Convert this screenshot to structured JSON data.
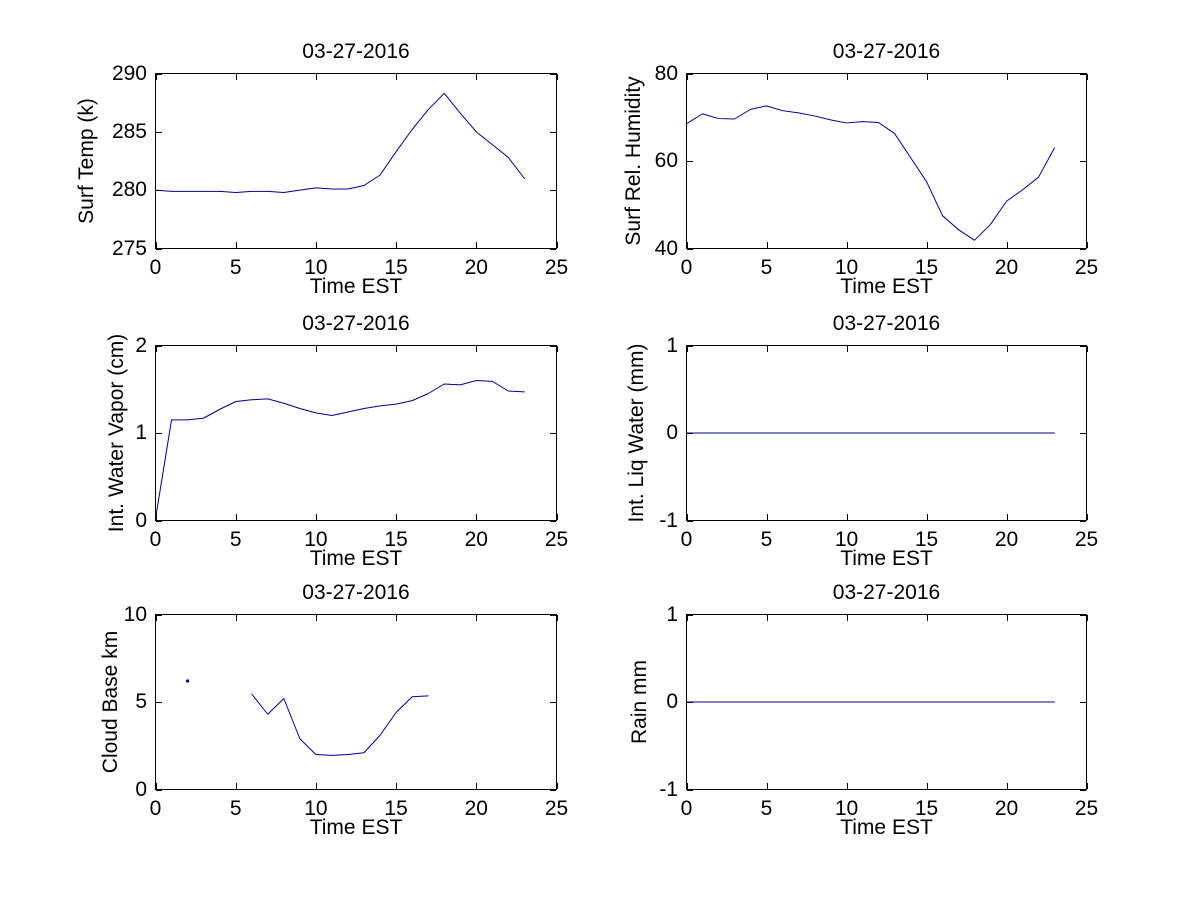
{
  "window": {
    "background": "#ffffff"
  },
  "figure": {
    "date": "03-27-2016",
    "line_color": "#00008B",
    "axis_color": "#000000",
    "text_color": "#000000",
    "grid": false,
    "legend": "none"
  },
  "chart_data": [
    {
      "type": "line",
      "title": "03-27-2016",
      "xlabel": "Time EST",
      "ylabel": "Surf Temp (k)",
      "xlim": [
        0,
        25
      ],
      "ylim": [
        275,
        290
      ],
      "xticks": [
        0,
        5,
        10,
        15,
        20,
        25
      ],
      "yticks": [
        275,
        280,
        285,
        290
      ],
      "series": [
        {
          "name": "surf-temp-k",
          "x": [
            0,
            1,
            2,
            3,
            4,
            5,
            6,
            7,
            8,
            9,
            10,
            11,
            12,
            13,
            14,
            15,
            16,
            17,
            18,
            19,
            20,
            21,
            22,
            23
          ],
          "y": [
            280.0,
            279.9,
            279.9,
            279.9,
            279.9,
            279.8,
            279.9,
            279.9,
            279.8,
            280.0,
            280.2,
            280.1,
            280.1,
            280.4,
            281.3,
            283.3,
            285.2,
            286.9,
            288.3,
            286.6,
            285.0,
            283.9,
            282.8,
            281.0
          ]
        }
      ]
    },
    {
      "type": "line",
      "title": "03-27-2016",
      "xlabel": "Time EST",
      "ylabel": "Surf Rel. Humidity",
      "xlim": [
        0,
        25
      ],
      "ylim": [
        40,
        80
      ],
      "xticks": [
        0,
        5,
        10,
        15,
        20,
        25
      ],
      "yticks": [
        40,
        60,
        80
      ],
      "series": [
        {
          "name": "surf-rel-humidity",
          "x": [
            0,
            1,
            2,
            3,
            4,
            5,
            6,
            7,
            8,
            9,
            10,
            11,
            12,
            13,
            14,
            15,
            16,
            17,
            18,
            19,
            20,
            21,
            22,
            23
          ],
          "y": [
            68.5,
            70.8,
            69.7,
            69.6,
            71.8,
            72.6,
            71.5,
            71.0,
            70.3,
            69.4,
            68.7,
            69.0,
            68.8,
            66.3,
            60.8,
            55.3,
            47.5,
            44.3,
            41.9,
            45.5,
            50.8,
            53.4,
            56.3,
            63.0
          ]
        }
      ]
    },
    {
      "type": "line",
      "title": "03-27-2016",
      "xlabel": "Time EST",
      "ylabel": "Int. Water Vapor (cm)",
      "xlim": [
        0,
        25
      ],
      "ylim": [
        0,
        2
      ],
      "xticks": [
        0,
        5,
        10,
        15,
        20,
        25
      ],
      "yticks": [
        0,
        1,
        2
      ],
      "series": [
        {
          "name": "int-water-vapor",
          "x": [
            0,
            1,
            2,
            3,
            4,
            5,
            6,
            7,
            8,
            9,
            10,
            11,
            12,
            13,
            14,
            15,
            16,
            17,
            18,
            19,
            20,
            21,
            22,
            23
          ],
          "y": [
            0.02,
            1.15,
            1.15,
            1.17,
            1.27,
            1.36,
            1.38,
            1.39,
            1.34,
            1.28,
            1.23,
            1.2,
            1.24,
            1.28,
            1.31,
            1.33,
            1.37,
            1.45,
            1.56,
            1.55,
            1.6,
            1.59,
            1.48,
            1.47
          ]
        }
      ]
    },
    {
      "type": "line",
      "title": "03-27-2016",
      "xlabel": "Time EST",
      "ylabel": "Int. Liq Water (mm)",
      "xlim": [
        0,
        25
      ],
      "ylim": [
        -1,
        1
      ],
      "xticks": [
        0,
        5,
        10,
        15,
        20,
        25
      ],
      "yticks": [
        -1,
        0,
        1
      ],
      "series": [
        {
          "name": "int-liq-water",
          "x": [
            0,
            1,
            2,
            3,
            4,
            5,
            6,
            7,
            8,
            9,
            10,
            11,
            12,
            13,
            14,
            15,
            16,
            17,
            18,
            19,
            20,
            21,
            22,
            23
          ],
          "y": [
            0,
            0,
            0,
            0,
            0,
            0,
            0,
            0,
            0,
            0,
            0,
            0,
            0,
            0,
            0,
            0,
            0,
            0,
            0,
            0,
            0,
            0,
            0,
            0
          ]
        }
      ]
    },
    {
      "type": "line",
      "title": "03-27-2016",
      "xlabel": "Time EST",
      "ylabel": "Cloud Base km",
      "xlim": [
        0,
        25
      ],
      "ylim": [
        0,
        10
      ],
      "xticks": [
        0,
        5,
        10,
        15,
        20,
        25
      ],
      "yticks": [
        0,
        5,
        10
      ],
      "series": [
        {
          "name": "cloud-base-isolated-point",
          "marker": "point",
          "x": [
            2
          ],
          "y": [
            6.2
          ]
        },
        {
          "name": "cloud-base",
          "x": [
            6,
            7,
            8,
            9,
            10,
            11,
            12,
            13,
            14,
            15,
            16,
            17
          ],
          "y": [
            5.45,
            4.3,
            5.2,
            2.9,
            2.0,
            1.95,
            2.0,
            2.1,
            3.1,
            4.4,
            5.3,
            5.35
          ]
        }
      ]
    },
    {
      "type": "line",
      "title": "03-27-2016",
      "xlabel": "Time EST",
      "ylabel": "Rain mm",
      "xlim": [
        0,
        25
      ],
      "ylim": [
        -1,
        1
      ],
      "xticks": [
        0,
        5,
        10,
        15,
        20,
        25
      ],
      "yticks": [
        -1,
        0,
        1
      ],
      "series": [
        {
          "name": "rain",
          "x": [
            0,
            1,
            2,
            3,
            4,
            5,
            6,
            7,
            8,
            9,
            10,
            11,
            12,
            13,
            14,
            15,
            16,
            17,
            18,
            19,
            20,
            21,
            22,
            23
          ],
          "y": [
            0,
            0,
            0,
            0,
            0,
            0,
            0,
            0,
            0,
            0,
            0,
            0,
            0,
            0,
            0,
            0,
            0,
            0,
            0,
            0,
            0,
            0,
            0,
            0
          ]
        }
      ]
    }
  ]
}
